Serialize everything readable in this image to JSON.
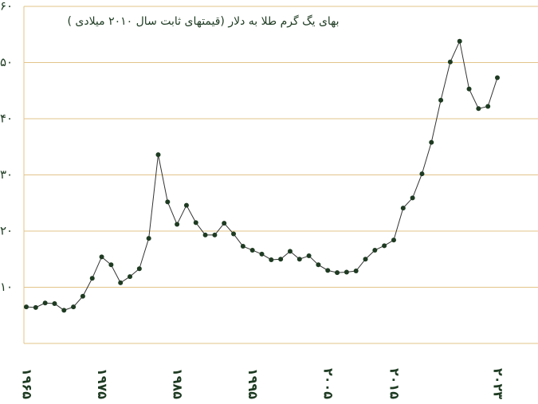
{
  "chart_data": {
    "type": "line",
    "title": "بهای یگ گرم طلا به دلار (قیمتهای ثابت سال ۲۰۱۰ میلادی )",
    "categories": [
      "۱۹۶۵",
      null,
      null,
      null,
      null,
      null,
      null,
      null,
      "۱۹۷۵",
      null,
      null,
      null,
      null,
      null,
      null,
      null,
      "۱۹۸۵",
      null,
      null,
      null,
      null,
      null,
      null,
      null,
      "۱۹۹۵",
      null,
      null,
      null,
      null,
      null,
      null,
      null,
      "۲۰۰۵",
      null,
      null,
      null,
      null,
      null,
      null,
      "۲۰۱۵",
      null,
      null,
      null,
      null,
      null,
      null,
      null,
      null,
      null,
      null,
      "۲۰۲۳"
    ],
    "values": [
      6.5,
      6.4,
      7.2,
      7.1,
      5.9,
      6.5,
      8.4,
      11.6,
      15.4,
      14.0,
      10.8,
      11.9,
      13.3,
      18.7,
      33.6,
      25.2,
      21.2,
      24.6,
      21.5,
      19.3,
      19.3,
      21.4,
      19.5,
      17.3,
      16.6,
      15.9,
      14.9,
      15.0,
      16.4,
      15.0,
      15.6,
      14.0,
      13.0,
      12.6,
      12.7,
      12.9,
      15.0,
      16.6,
      17.4,
      18.4,
      24.1,
      25.9,
      30.2,
      35.8,
      43.3,
      50.1,
      53.8,
      45.3,
      41.8,
      42.2,
      47.3
    ],
    "color": "#1e3b22",
    "ylim": [
      0,
      60
    ],
    "yticks": [
      {
        "value": 10,
        "label": "۱۰"
      },
      {
        "value": 20,
        "label": "۲۰"
      },
      {
        "value": 30,
        "label": "۳۰"
      },
      {
        "value": 40,
        "label": "۴۰"
      },
      {
        "value": 50,
        "label": "۵۰"
      },
      {
        "value": 60,
        "label": "۶۰"
      }
    ],
    "grid": true
  }
}
